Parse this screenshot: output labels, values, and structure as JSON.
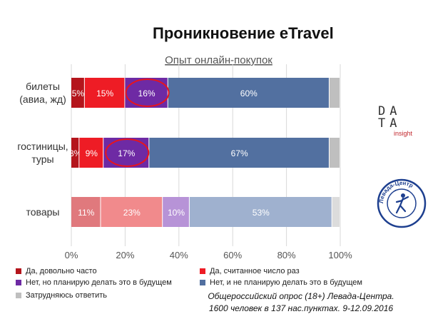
{
  "title": "Проникновение eTravel",
  "logo": {
    "row1": "DA",
    "row2": "TA",
    "sub": "insight"
  },
  "seal_text": "Левада-Центр",
  "note": {
    "line1": "Общероссийский опрос (18+) Левада-Центра.",
    "line2": "1600 человек в 137 нас.пунктах. 9-12.09.2016"
  },
  "chart_data": {
    "type": "bar",
    "orientation": "horizontal",
    "stacked": true,
    "title": "Опыт онлайн-покупок",
    "categories": [
      [
        "билеты",
        "(авиа, жд)"
      ],
      [
        "гостиницы,",
        "туры"
      ],
      [
        "товары"
      ]
    ],
    "xlim": [
      0,
      100
    ],
    "xticks": [
      0,
      20,
      40,
      60,
      80,
      100
    ],
    "xtick_labels": [
      "0%",
      "20%",
      "40%",
      "60%",
      "80%",
      "100%"
    ],
    "grid": true,
    "legend_position": "bottom",
    "series": [
      {
        "name": "Да, довольно часто",
        "values": [
          5,
          3,
          11
        ],
        "labels": [
          "5%",
          "3%",
          "11%"
        ],
        "colors": [
          "#b4151c",
          "#b4151c",
          "#e0797d"
        ]
      },
      {
        "name": "Да, считанное число  раз",
        "values": [
          15,
          9,
          23
        ],
        "labels": [
          "15%",
          "9%",
          "23%"
        ],
        "colors": [
          "#ee1c25",
          "#ee1c25",
          "#f18a8c"
        ]
      },
      {
        "name": "Нет, но планирую делать это в будущем",
        "values": [
          16,
          17,
          10
        ],
        "labels": [
          "16%",
          "17%",
          "10%"
        ],
        "colors": [
          "#6e2aa4",
          "#6e2aa4",
          "#b793d7"
        ]
      },
      {
        "name": "Нет, и не планирую делать это в будущем",
        "values": [
          60,
          67,
          53
        ],
        "labels": [
          "60%",
          "67%",
          "53%"
        ],
        "colors": [
          "#5270a0",
          "#5270a0",
          "#9fb1cf"
        ]
      },
      {
        "name": "Затрудняюсь ответить",
        "values": [
          4,
          4,
          3
        ],
        "labels": [
          "",
          "",
          ""
        ],
        "colors": [
          "#bfbfbf",
          "#bfbfbf",
          "#dcdcdc"
        ]
      }
    ],
    "highlighted": [
      {
        "category_index": 0,
        "series_index": 2
      },
      {
        "category_index": 1,
        "series_index": 2
      }
    ],
    "highlight_color": "#e8141c"
  }
}
